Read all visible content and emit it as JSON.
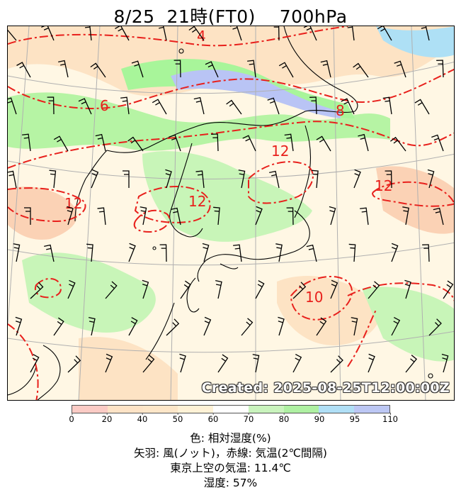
{
  "header": {
    "date": "8/25",
    "time": "21時(FT0)",
    "level": "700hPa"
  },
  "map": {
    "created_label": "Created: 2025-08-25T12:00:00Z",
    "contour_labels": [
      "4",
      "6",
      "8",
      "12",
      "12",
      "12",
      "12",
      "10"
    ],
    "colors": {
      "contour": "#e8201c",
      "coast": "#000000",
      "grid": "#b0b0b0",
      "barb": "#000000"
    },
    "humidity_palette": {
      "lt50": "#fde3c4",
      "50_70": "#fff3d2",
      "70_80": "#c8f5b8",
      "80_90": "#a8f59a",
      "90_95": "#aee0f5",
      "95_110": "#b9c4f5"
    }
  },
  "colorbar": {
    "ticks": [
      "0",
      "20",
      "40",
      "50",
      "60",
      "70",
      "80",
      "90",
      "95",
      "110"
    ],
    "colors": [
      "#fbcbc5",
      "#fde3c6",
      "#fde6c8",
      "#fff2d6",
      "#ffffff",
      "#c9f3bd",
      "#aef0a2",
      "#b0dff6",
      "#bcc7f4"
    ]
  },
  "legend": {
    "line1": "色: 相対湿度(%)",
    "line2": "矢羽: 風(ノット)，赤線: 気温(2℃間隔)",
    "line3": "東京上空の気温: 11.4℃",
    "line4": "湿度: 57%"
  }
}
